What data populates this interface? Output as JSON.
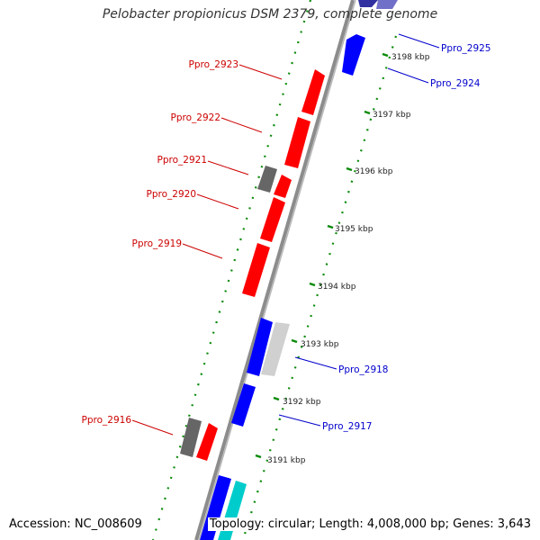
{
  "title": "Pelobacter propionicus DSM 2379, complete genome",
  "accession": "Accession: NC_008609",
  "topology": "Topology: circular; Length: 4,008,000 bp; Genes: 3,643",
  "colors": {
    "forward": "#ff0000",
    "reverse": "#0000ff",
    "gray": "#808080",
    "light_gray": "#d0d0d0",
    "cyan": "#00cccc",
    "backbone": "#8c8c8c",
    "gc_dots": "#0a8a0a",
    "label_forward": "#cc0000",
    "label_reverse": "#0000cc"
  },
  "scale_ticks": [
    {
      "label": "3198 kbp"
    },
    {
      "label": "3197 kbp"
    },
    {
      "label": "3196 kbp"
    },
    {
      "label": "3195 kbp"
    },
    {
      "label": "3194 kbp"
    },
    {
      "label": "3193 kbp"
    },
    {
      "label": "3192 kbp"
    },
    {
      "label": "3191 kbp"
    }
  ],
  "gene_labels_forward": [
    {
      "name": "Ppro_2923"
    },
    {
      "name": "Ppro_2922"
    },
    {
      "name": "Ppro_2921"
    },
    {
      "name": "Ppro_2920"
    },
    {
      "name": "Ppro_2919"
    },
    {
      "name": "Ppro_2916"
    }
  ],
  "gene_labels_reverse": [
    {
      "name": "Ppro_2925"
    },
    {
      "name": "Ppro_2924"
    },
    {
      "name": "Ppro_2918"
    },
    {
      "name": "Ppro_2917"
    }
  ]
}
